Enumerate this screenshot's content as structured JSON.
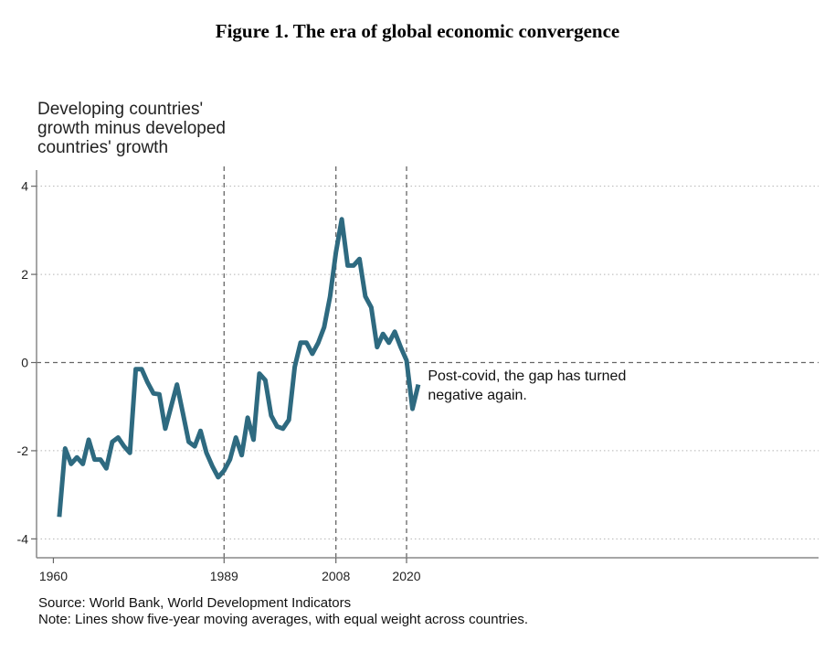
{
  "figure": {
    "title": "Figure 1. The era of global economic convergence",
    "source": "Source: World Bank, World Development Indicators",
    "note": "Note: Lines show five-year moving averages, with equal weight across countries."
  },
  "chart_data": {
    "type": "line",
    "title": "Figure 1. The era of global economic convergence",
    "ylabel_lines": [
      "Developing countries'",
      "growth minus developed",
      "countries' growth"
    ],
    "xlabel": "",
    "x_ticks": [
      1960,
      1989,
      2008,
      2020
    ],
    "y_ticks": [
      4,
      2,
      0,
      -2,
      -4
    ],
    "xlim": [
      1959,
      2090
    ],
    "ylim": [
      -4.2,
      4.2
    ],
    "grid": "dotted horizontal",
    "reference_lines": {
      "x": [
        1989,
        2008,
        2020
      ],
      "y": [
        0
      ]
    },
    "line_color": "#2e6a80",
    "annotation": {
      "lines": [
        "Post-covid, the gap has turned",
        "negative again."
      ],
      "x": 2023,
      "y": -0.45
    },
    "series": [
      {
        "x": [
          1961,
          1962,
          1963,
          1964,
          1965,
          1966,
          1967,
          1968,
          1969,
          1970,
          1971,
          1972,
          1973,
          1974,
          1975,
          1976,
          1977,
          1978,
          1979,
          1980,
          1981,
          1982,
          1983,
          1984,
          1985,
          1986,
          1987,
          1988,
          1989,
          1990,
          1991,
          1992,
          1993,
          1994,
          1995,
          1996,
          1997,
          1998,
          1999,
          2000,
          2001,
          2002,
          2003,
          2004,
          2005,
          2006,
          2007,
          2008,
          2009,
          2010,
          2011,
          2012,
          2013,
          2014,
          2015,
          2016,
          2017,
          2018,
          2019,
          2020,
          2021,
          2022
        ],
        "values": [
          -3.5,
          -1.95,
          -2.3,
          -2.15,
          -2.3,
          -1.75,
          -2.2,
          -2.2,
          -2.4,
          -1.8,
          -1.7,
          -1.9,
          -2.05,
          -0.15,
          -0.15,
          -0.45,
          -0.7,
          -0.72,
          -1.5,
          -1.0,
          -0.5,
          -1.15,
          -1.8,
          -1.9,
          -1.55,
          -2.05,
          -2.35,
          -2.6,
          -2.45,
          -2.2,
          -1.7,
          -2.1,
          -1.25,
          -1.75,
          -0.25,
          -0.4,
          -1.2,
          -1.45,
          -1.5,
          -1.3,
          -0.1,
          0.45,
          0.45,
          0.2,
          0.45,
          0.8,
          1.5,
          2.5,
          3.25,
          2.2,
          2.2,
          2.35,
          1.5,
          1.25,
          0.35,
          0.65,
          0.45,
          0.7,
          0.35,
          0.05,
          -1.05,
          -0.5
        ]
      }
    ]
  }
}
